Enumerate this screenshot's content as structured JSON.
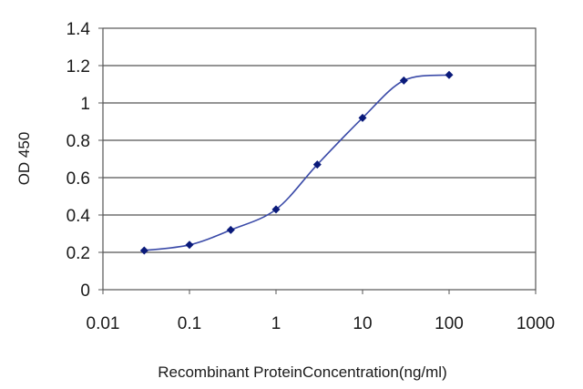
{
  "chart_data": {
    "type": "line",
    "title": "",
    "xlabel": "Recombinant ProteinConcentration(ng/ml)",
    "ylabel": "OD 450",
    "x_scale": "log",
    "xlim": [
      0.01,
      1000
    ],
    "ylim": [
      0,
      1.4
    ],
    "x_ticks": [
      "0.01",
      "0.1",
      "1",
      "10",
      "100",
      "1000"
    ],
    "y_ticks": [
      "0",
      "0.2",
      "0.4",
      "0.6",
      "0.8",
      "1",
      "1.2",
      "1.4"
    ],
    "grid": "horizontal",
    "legend": "none",
    "series": [
      {
        "x": [
          0.03,
          0.1,
          0.3,
          1,
          3,
          10,
          30,
          100
        ],
        "y": [
          0.21,
          0.24,
          0.32,
          0.43,
          0.67,
          0.92,
          1.12,
          1.15
        ],
        "color": "#3a4aa8",
        "marker_color": "#0a1a7a"
      }
    ]
  }
}
